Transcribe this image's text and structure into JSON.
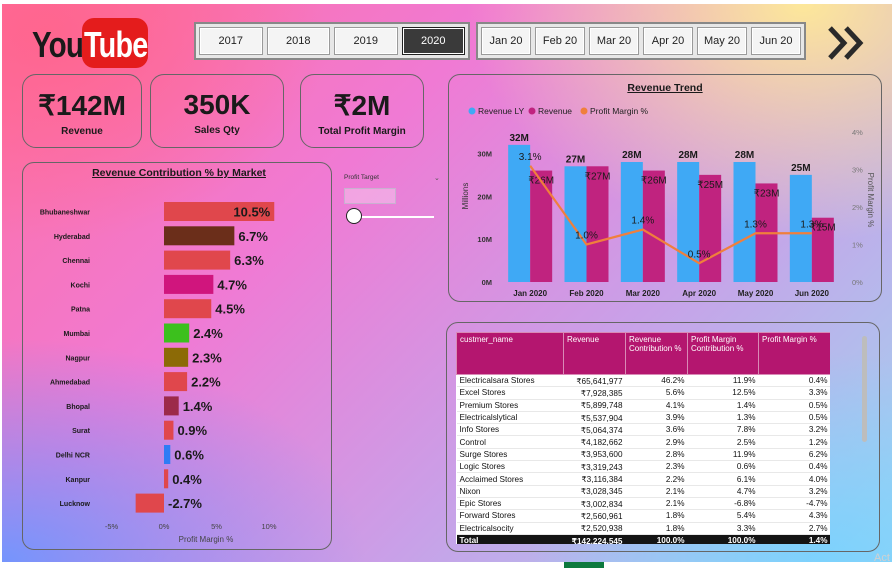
{
  "logo": {
    "you": "You",
    "tube": "Tube"
  },
  "year_slicer": {
    "items": [
      "2017",
      "2018",
      "2019",
      "2020"
    ],
    "selected": "2020"
  },
  "month_slicer": {
    "items": [
      "Jan 20",
      "Feb 20",
      "Mar 20",
      "Apr 20",
      "May 20",
      "Jun 20"
    ]
  },
  "nav": {
    "icon": "double-chevron-right-icon"
  },
  "kpis": [
    {
      "value": "₹142M",
      "label": "Revenue"
    },
    {
      "value": "350K",
      "label": "Sales Qty"
    },
    {
      "value": "₹2M",
      "label": "Total Profit Margin"
    }
  ],
  "profit_target": {
    "label": "Profit Target",
    "value": ""
  },
  "colors": {
    "revenue_ly": "#3fa9f5",
    "revenue": "#c0237f",
    "profit_margin": "#f07f3c",
    "table_header": "#b4166f"
  },
  "chart_data": [
    {
      "type": "bar",
      "orientation": "horizontal",
      "title": "Revenue Contribution % by Market",
      "xlabel": "Profit Margin %",
      "xlim": [
        -5,
        10
      ],
      "xticks": [
        "-5%",
        "0%",
        "5%",
        "10%"
      ],
      "categories": [
        "Bhubaneshwar",
        "Hyderabad",
        "Chennai",
        "Kochi",
        "Patna",
        "Mumbai",
        "Nagpur",
        "Ahmedabad",
        "Bhopal",
        "Surat",
        "Delhi NCR",
        "Kanpur",
        "Lucknow"
      ],
      "values": [
        10.5,
        6.7,
        6.3,
        4.7,
        4.5,
        2.4,
        2.3,
        2.2,
        1.4,
        0.9,
        0.6,
        0.4,
        -2.7
      ],
      "labels": [
        "10.5%",
        "6.7%",
        "6.3%",
        "4.7%",
        "4.5%",
        "2.4%",
        "2.3%",
        "2.2%",
        "1.4%",
        "0.9%",
        "0.6%",
        "0.4%",
        "-2.7%"
      ],
      "bar_colors": [
        "#e0474c",
        "#6b2e1a",
        "#e0474c",
        "#d0157d",
        "#e0474c",
        "#3cc01d",
        "#8c6a06",
        "#e0474c",
        "#9c2a4a",
        "#e0474c",
        "#2e7cf5",
        "#e0474c",
        "#e0474c"
      ]
    },
    {
      "type": "bar",
      "title": "Revenue Trend",
      "categories": [
        "Jan 2020",
        "Feb 2020",
        "Mar 2020",
        "Apr 2020",
        "May 2020",
        "Jun 2020"
      ],
      "ylabel": "Millions",
      "ylim": [
        0,
        35
      ],
      "yticks": [
        "0M",
        "10M",
        "20M",
        "30M"
      ],
      "y2label": "Profit Margin %",
      "y2lim": [
        0,
        4
      ],
      "y2ticks": [
        "0%",
        "1%",
        "2%",
        "3%",
        "4%"
      ],
      "legend": "top-left",
      "series": [
        {
          "name": "Revenue LY",
          "kind": "bar",
          "values": [
            32,
            27,
            28,
            28,
            28,
            25
          ],
          "labels": [
            "32M",
            "27M",
            "28M",
            "28M",
            "28M",
            "25M"
          ]
        },
        {
          "name": "Revenue",
          "kind": "bar",
          "values": [
            26,
            27,
            26,
            25,
            23,
            15
          ],
          "labels": [
            "₹26M",
            "₹27M",
            "₹26M",
            "₹25M",
            "₹23M",
            "₹15M"
          ]
        },
        {
          "name": "Profit Margin %",
          "kind": "line",
          "axis": "secondary",
          "values": [
            3.1,
            1.0,
            1.4,
            0.5,
            1.3,
            1.3
          ],
          "labels": [
            "3.1%",
            "1.0%",
            "1.4%",
            "0.5%",
            "1.3%",
            "1.3%"
          ]
        }
      ]
    }
  ],
  "customer_table": {
    "columns": [
      "custmer_name",
      "Revenue",
      "Revenue Contribution %",
      "Profit Margin Contribution %",
      "Profit Margin %"
    ],
    "rows": [
      [
        "Electricalsara Stores",
        "₹65,641,977",
        "46.2%",
        "11.9%",
        "0.4%"
      ],
      [
        "Excel Stores",
        "₹7,928,385",
        "5.6%",
        "12.5%",
        "3.3%"
      ],
      [
        "Premium Stores",
        "₹5,899,748",
        "4.1%",
        "1.4%",
        "0.5%"
      ],
      [
        "Electricalslytical",
        "₹5,537,904",
        "3.9%",
        "1.3%",
        "0.5%"
      ],
      [
        "Info Stores",
        "₹5,064,374",
        "3.6%",
        "7.8%",
        "3.2%"
      ],
      [
        "Control",
        "₹4,182,662",
        "2.9%",
        "2.5%",
        "1.2%"
      ],
      [
        "Surge Stores",
        "₹3,953,600",
        "2.8%",
        "11.9%",
        "6.2%"
      ],
      [
        "Logic Stores",
        "₹3,319,243",
        "2.3%",
        "0.6%",
        "0.4%"
      ],
      [
        "Acclaimed Stores",
        "₹3,116,384",
        "2.2%",
        "6.1%",
        "4.0%"
      ],
      [
        "Nixon",
        "₹3,028,345",
        "2.1%",
        "4.7%",
        "3.2%"
      ],
      [
        "Epic Stores",
        "₹3,002,834",
        "2.1%",
        "-6.8%",
        "-4.7%"
      ],
      [
        "Forward Stores",
        "₹2,560,961",
        "1.8%",
        "5.4%",
        "4.3%"
      ],
      [
        "Electricalsocity",
        "₹2,520,938",
        "1.8%",
        "3.3%",
        "2.7%"
      ]
    ],
    "total": [
      "Total",
      "₹142,224,545",
      "100.0%",
      "100.0%",
      "1.4%"
    ]
  },
  "corner_text": "Act"
}
